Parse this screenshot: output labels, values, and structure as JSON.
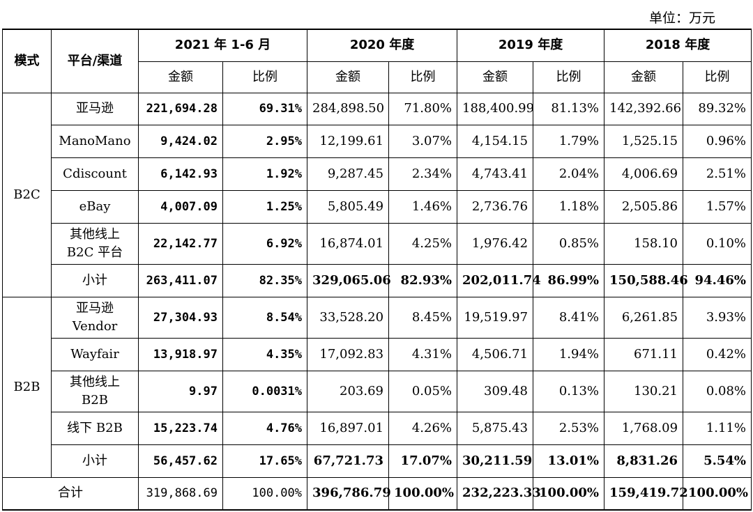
{
  "unit_label": "单位：万元",
  "header": {
    "mode": "模式",
    "platform": "平台/渠道",
    "periods": [
      "2021 年 1-6 月",
      "2020 年度",
      "2019 年度",
      "2018 年度"
    ],
    "amount": "金额",
    "ratio": "比例"
  },
  "groups": [
    {
      "mode": "B2C",
      "rows": [
        {
          "platform": "亚马逊",
          "values": [
            "221,694.28",
            "69.31%",
            "284,898.50",
            "71.80%",
            "188,400.99",
            "81.13%",
            "142,392.66",
            "89.32%"
          ]
        },
        {
          "platform": "ManoMano",
          "values": [
            "9,424.02",
            "2.95%",
            "12,199.61",
            "3.07%",
            "4,154.15",
            "1.79%",
            "1,525.15",
            "0.96%"
          ]
        },
        {
          "platform": "Cdiscount",
          "values": [
            "6,142.93",
            "1.92%",
            "9,287.45",
            "2.34%",
            "4,743.41",
            "2.04%",
            "4,006.69",
            "2.51%"
          ]
        },
        {
          "platform": "eBay",
          "values": [
            "4,007.09",
            "1.25%",
            "5,805.49",
            "1.46%",
            "2,736.76",
            "1.18%",
            "2,505.86",
            "1.57%"
          ]
        },
        {
          "platform_line1": "其他线上",
          "platform_line2": "B2C 平台",
          "values": [
            "22,142.77",
            "6.92%",
            "16,874.01",
            "4.25%",
            "1,976.42",
            "0.85%",
            "158.10",
            "0.10%"
          ]
        },
        {
          "platform": "小计",
          "values": [
            "263,411.07",
            "82.35%",
            "329,065.06",
            "82.93%",
            "202,011.74",
            "86.99%",
            "150,588.46",
            "94.46%"
          ]
        }
      ]
    },
    {
      "mode": "B2B",
      "rows": [
        {
          "platform_line1": "亚马逊",
          "platform_line2": "Vendor",
          "values": [
            "27,304.93",
            "8.54%",
            "33,528.20",
            "8.45%",
            "19,519.97",
            "8.41%",
            "6,261.85",
            "3.93%"
          ]
        },
        {
          "platform": "Wayfair",
          "values": [
            "13,918.97",
            "4.35%",
            "17,092.83",
            "4.31%",
            "4,506.71",
            "1.94%",
            "671.11",
            "0.42%"
          ]
        },
        {
          "platform_line1": "其他线上",
          "platform_line2": "B2B",
          "values": [
            "9.97",
            "0.0031%",
            "203.69",
            "0.05%",
            "309.48",
            "0.13%",
            "130.21",
            "0.08%"
          ]
        },
        {
          "platform": "线下 B2B",
          "values": [
            "15,223.74",
            "4.76%",
            "16,897.01",
            "4.26%",
            "5,875.43",
            "2.53%",
            "1,768.09",
            "1.11%"
          ]
        },
        {
          "platform": "小计",
          "values": [
            "56,457.62",
            "17.65%",
            "67,721.73",
            "17.07%",
            "30,211.59",
            "13.01%",
            "8,831.26",
            "5.54%"
          ]
        }
      ]
    }
  ],
  "total": {
    "label": "合计",
    "values": [
      "319,868.69",
      "100.00%",
      "396,786.79",
      "100.00%",
      "232,223.33",
      "100.00%",
      "159,419.72",
      "100.00%"
    ]
  }
}
